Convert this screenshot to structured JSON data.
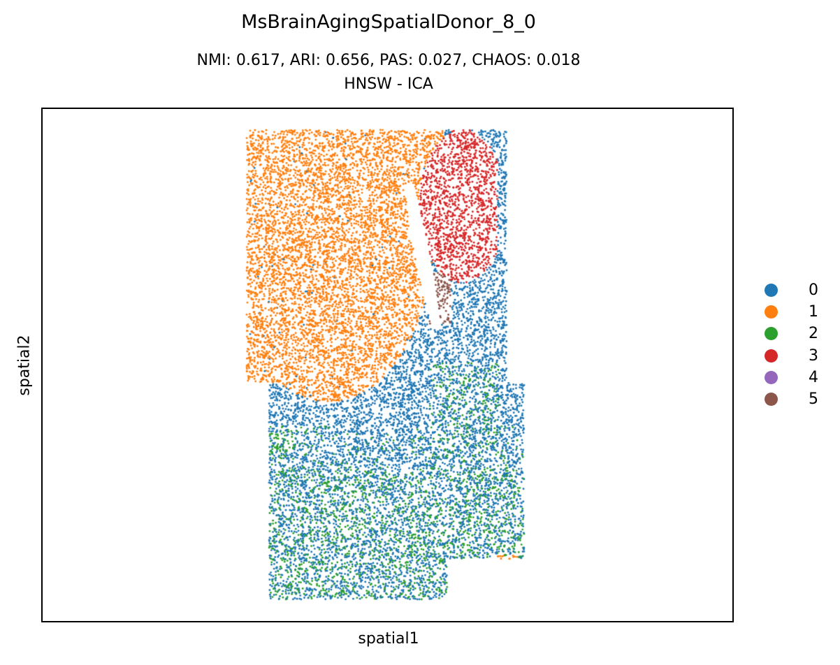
{
  "chart_data": {
    "type": "scatter",
    "title": "MsBrainAgingSpatialDonor_8_0",
    "subtitle_1": "NMI: 0.617,  ARI: 0.656,  PAS: 0.027,  CHAOS: 0.018",
    "subtitle_2": "HNSW - ICA",
    "xlabel": "spatial1",
    "ylabel": "spatial2",
    "ticks": "none",
    "grid": false,
    "legend_placement": "right",
    "series": [
      {
        "name": "0",
        "color": "#1f77b4"
      },
      {
        "name": "1",
        "color": "#ff7f0e"
      },
      {
        "name": "2",
        "color": "#2ca02c"
      },
      {
        "name": "3",
        "color": "#d62728"
      },
      {
        "name": "4",
        "color": "#9467bd"
      },
      {
        "name": "5",
        "color": "#8c564b"
      }
    ]
  }
}
